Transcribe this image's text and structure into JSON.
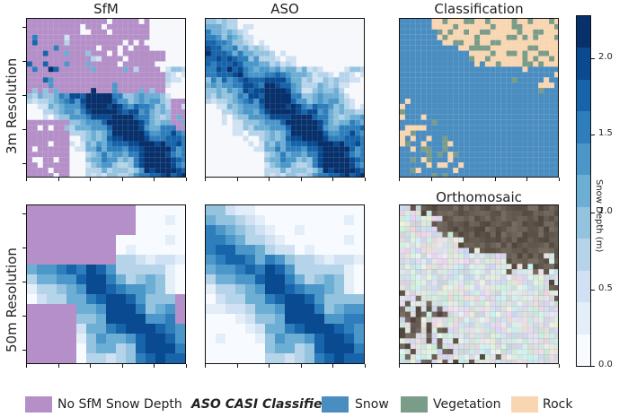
{
  "columns": [
    "SfM",
    "ASO",
    "Classification",
    "Orthomosaic"
  ],
  "rows": [
    "3m Resolution",
    "50m Resolution"
  ],
  "colorbar": {
    "label": "Snow Depth (m)",
    "ticks": [
      "0.0",
      "0.5",
      "1.0",
      "1.5",
      "2.0"
    ],
    "colors": [
      "#f7fbff",
      "#e3eef9",
      "#cfe1f2",
      "#b5d4e9",
      "#93c3df",
      "#6daed5",
      "#4b97c9",
      "#2f7ebc",
      "#1864aa",
      "#0a4a90",
      "#08306b"
    ]
  },
  "legend": {
    "no_sfm_label": "No SfM Snow Depth",
    "title": "ASO CASI Classifier",
    "snow_label": "Snow",
    "vegetation_label": "Vegetation",
    "rock_label": "Rock",
    "colors": {
      "no_sfm": "#b48fc8",
      "snow": "#4a8dc0",
      "vegetation": "#7a9c88",
      "rock": "#f8d6b2"
    }
  }
}
